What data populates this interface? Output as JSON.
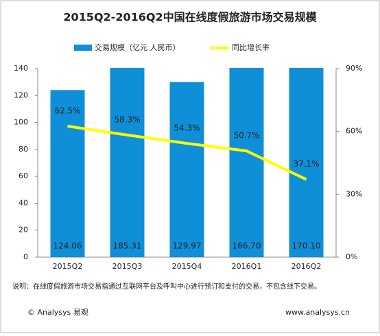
{
  "chart_data": {
    "type": "bar-line",
    "title": "2015Q2-2016Q2中国在线度假旅游市场交易规模",
    "categories": [
      "2015Q2",
      "2015Q3",
      "2015Q4",
      "2016Q1",
      "2016Q2"
    ],
    "series": [
      {
        "name": "交易规模（亿元 人民币）",
        "color": "#0f8fd8",
        "values": [
          124.06,
          185.31,
          129.97,
          166.7,
          170.1
        ],
        "value_labels": [
          "124.06",
          "185.31",
          "129.97",
          "166.70",
          "170.10"
        ]
      },
      {
        "name": "同比增长率",
        "color": "#ffff00",
        "axis": "y2",
        "values": [
          62.5,
          58.3,
          54.3,
          50.7,
          37.1
        ],
        "value_labels": [
          "62.5%",
          "58.3%",
          "54.3%",
          "50.7%",
          "37.1%"
        ]
      }
    ],
    "ylim": [
      0,
      140
    ],
    "yticks": [
      0,
      20,
      40,
      60,
      80,
      100,
      120,
      140
    ],
    "y2lim": [
      0,
      90
    ],
    "y2ticks": [
      {
        "value": 0,
        "label": "0%"
      },
      {
        "value": 30,
        "label": "30%"
      },
      {
        "value": 60,
        "label": "60%"
      },
      {
        "value": 90,
        "label": "90%"
      }
    ],
    "note": "说明：在线度假旅游市场交易指通过互联网平台及呼叫中心进行预订和支付的交易，不包含线下交易。",
    "footer": [
      "© Analysys 易观",
      "www.analysys.cn"
    ]
  }
}
